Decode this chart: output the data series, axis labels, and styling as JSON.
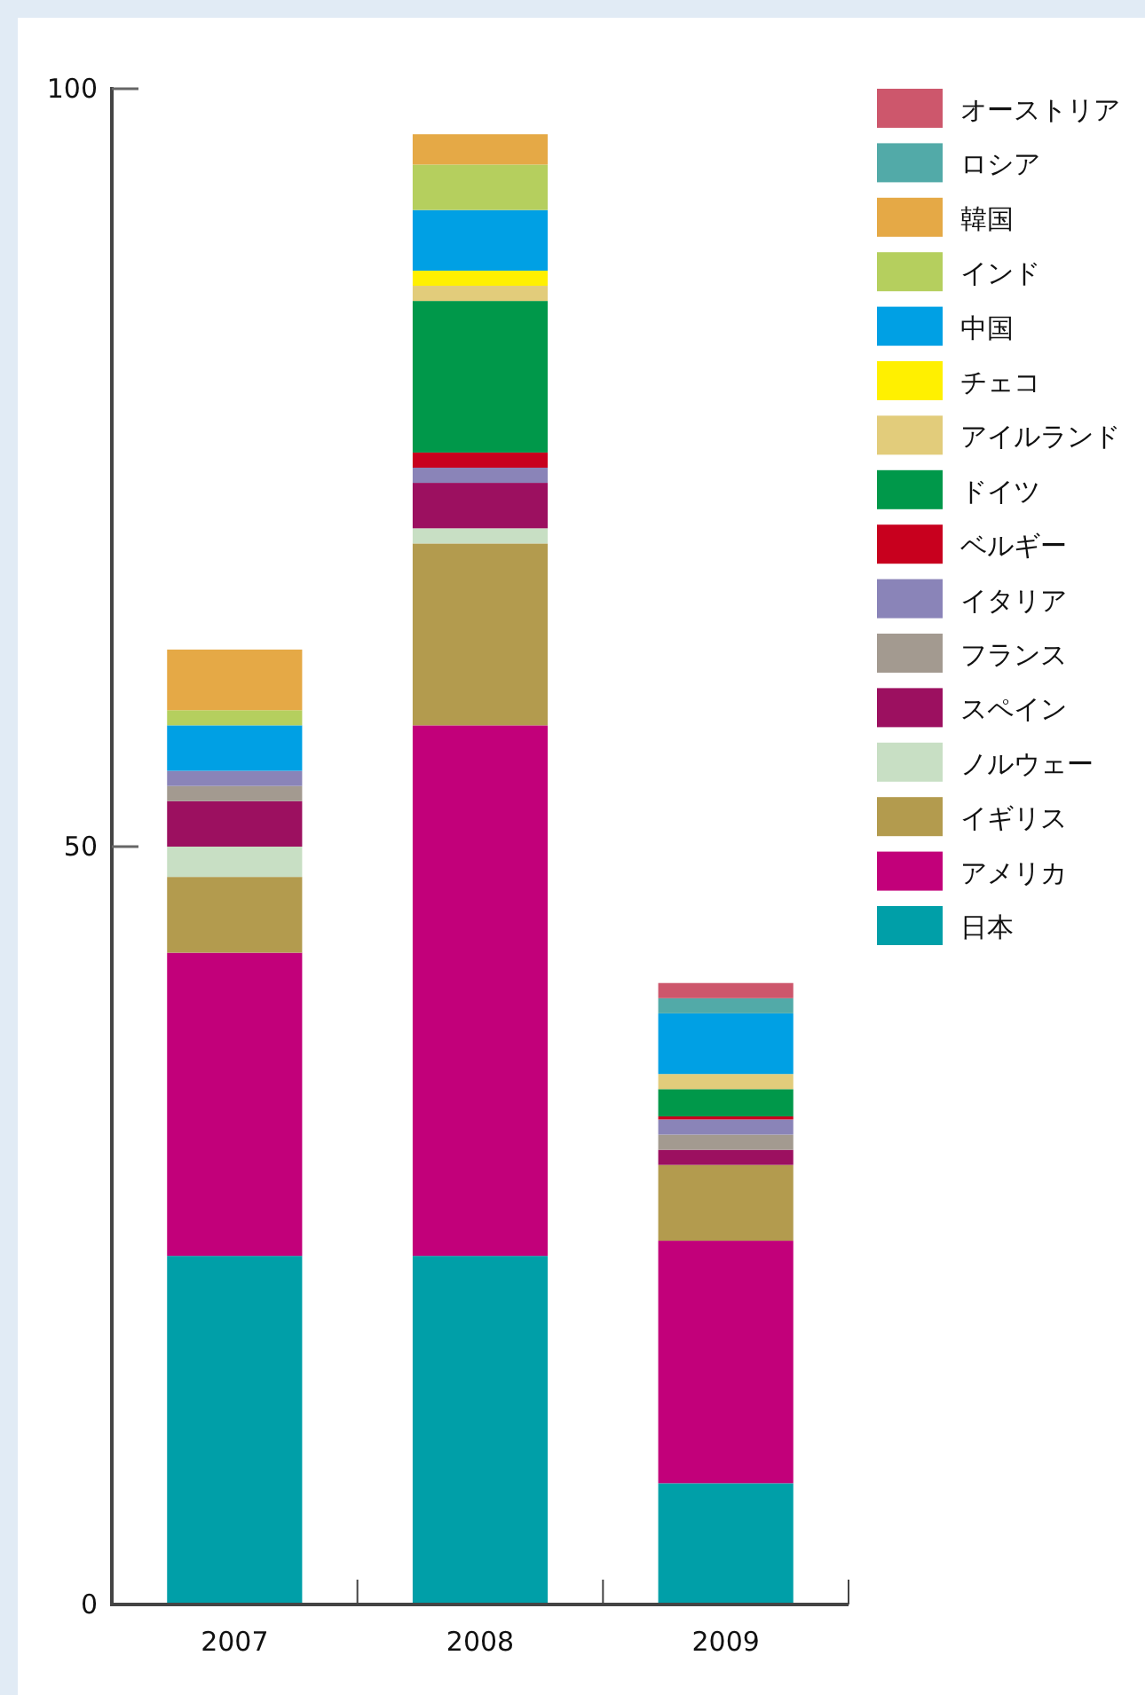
{
  "chart_data": {
    "type": "bar",
    "stacked": true,
    "categories": [
      "2007",
      "2008",
      "2009"
    ],
    "ylim": [
      0,
      100
    ],
    "yticks": [
      0,
      50,
      100
    ],
    "grid": false,
    "legend": "top right",
    "series": [
      {
        "name": "日本",
        "color": "#009fa8",
        "values": [
          23,
          23,
          8
        ]
      },
      {
        "name": "アメリカ",
        "color": "#c2007a",
        "values": [
          20,
          35,
          16
        ]
      },
      {
        "name": "イギリス",
        "color": "#b39b4e",
        "values": [
          5,
          12,
          5
        ]
      },
      {
        "name": "ノルウェー",
        "color": "#c8dfc4",
        "values": [
          2,
          1,
          0
        ]
      },
      {
        "name": "スペイン",
        "color": "#9c1060",
        "values": [
          3,
          3,
          1
        ]
      },
      {
        "name": "フランス",
        "color": "#a39a90",
        "values": [
          1,
          0,
          1
        ]
      },
      {
        "name": "イタリア",
        "color": "#8a84b8",
        "values": [
          1,
          1,
          1
        ]
      },
      {
        "name": "ベルギー",
        "color": "#c8001e",
        "values": [
          0,
          1,
          0.2
        ]
      },
      {
        "name": "ドイツ",
        "color": "#00984a",
        "values": [
          0,
          10,
          1.8
        ]
      },
      {
        "name": "アイルランド",
        "color": "#e2cc7b",
        "values": [
          0,
          1,
          1
        ]
      },
      {
        "name": "チェコ",
        "color": "#fff000",
        "values": [
          0,
          1,
          0
        ]
      },
      {
        "name": "中国",
        "color": "#00a0e4",
        "values": [
          3,
          4,
          4
        ]
      },
      {
        "name": "インド",
        "color": "#b5cf5e",
        "values": [
          1,
          3,
          0
        ]
      },
      {
        "name": "韓国",
        "color": "#e5a946",
        "values": [
          4,
          2,
          0
        ]
      },
      {
        "name": "ロシア",
        "color": "#52aaa8",
        "values": [
          0,
          0,
          1
        ]
      },
      {
        "name": "オーストリア",
        "color": "#cd576c",
        "values": [
          0,
          0,
          1
        ]
      }
    ]
  }
}
